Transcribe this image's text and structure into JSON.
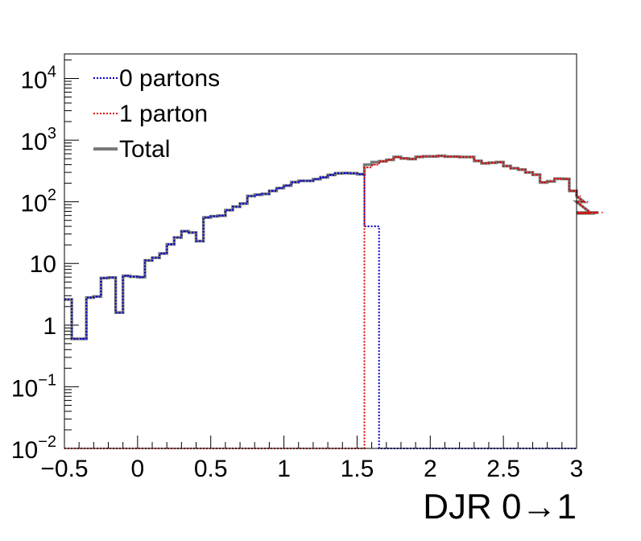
{
  "chart_data": {
    "type": "line",
    "style": "step-histogram",
    "xlabel": "DJR 0→1",
    "ylabel": "",
    "title": "",
    "xlim": [
      -0.5,
      3.0
    ],
    "ylim": [
      0.01,
      25000
    ],
    "yscale": "log",
    "bin_width": 0.05,
    "grid": false,
    "legend": {
      "placement": "top-left",
      "entries": [
        "0 partons",
        "1 parton",
        "Total"
      ]
    },
    "x_ticks": [
      {
        "value": -0.5,
        "label": "−0.5"
      },
      {
        "value": 0,
        "label": "0"
      },
      {
        "value": 0.5,
        "label": "0.5"
      },
      {
        "value": 1,
        "label": "1"
      },
      {
        "value": 1.5,
        "label": "1.5"
      },
      {
        "value": 2,
        "label": "2"
      },
      {
        "value": 2.5,
        "label": "2.5"
      },
      {
        "value": 3,
        "label": "3"
      }
    ],
    "y_ticks": [
      {
        "value": 0.01,
        "base": "10",
        "exp": "−2",
        "label": "10^-2"
      },
      {
        "value": 0.1,
        "base": "10",
        "exp": "−1",
        "label": "10^-1"
      },
      {
        "value": 1,
        "base": "1",
        "exp": "",
        "label": "1"
      },
      {
        "value": 10,
        "base": "10",
        "exp": "",
        "label": "10"
      },
      {
        "value": 100,
        "base": "10",
        "exp": "2",
        "label": "10^2"
      },
      {
        "value": 1000,
        "base": "10",
        "exp": "3",
        "label": "10^3"
      },
      {
        "value": 10000,
        "base": "10",
        "exp": "4",
        "label": "10^4"
      }
    ],
    "series": [
      {
        "name": "0 partons",
        "color": "#0000cc",
        "dash": "dotted",
        "x_start": -0.5,
        "values": [
          2.6,
          0.6,
          0.6,
          2.8,
          2.9,
          5.8,
          5.9,
          1.6,
          6.3,
          6.1,
          6.0,
          11.2,
          12.4,
          14.5,
          20.4,
          26.4,
          33.3,
          31.7,
          23.0,
          55.6,
          58.2,
          59.6,
          73.3,
          83.3,
          93.5,
          124.0,
          130.0,
          134.0,
          150.0,
          167.0,
          183.0,
          208.0,
          219.0,
          219.0,
          233.0,
          249.0,
          273.0,
          290.0,
          292.0,
          290.0,
          280.0,
          40.0,
          40.0,
          0.01,
          0.01,
          0.01,
          0.01,
          0.01,
          0.01,
          0.01,
          0.01,
          0.01,
          0.01,
          0.01,
          0.01,
          0.01,
          0.01,
          0.01,
          0.01,
          0.01,
          0.01,
          0.01,
          0.01,
          0.01,
          0.01,
          0.01,
          0.01,
          0.01,
          0.01,
          0.01
        ]
      },
      {
        "name": "1 parton",
        "color": "#dd0000",
        "dash": "dotted",
        "x_start": -0.5,
        "values": [
          0.01,
          0.01,
          0.01,
          0.01,
          0.01,
          0.01,
          0.01,
          0.01,
          0.01,
          0.01,
          0.01,
          0.01,
          0.01,
          0.01,
          0.01,
          0.01,
          0.01,
          0.01,
          0.01,
          0.01,
          0.01,
          0.01,
          0.01,
          0.01,
          0.01,
          0.01,
          0.01,
          0.01,
          0.01,
          0.01,
          0.01,
          0.01,
          0.01,
          0.01,
          0.01,
          0.01,
          0.01,
          0.01,
          0.01,
          0.01,
          0.01,
          360.0,
          400.0,
          453.0,
          480.0,
          532.0,
          505.0,
          495.0,
          535.0,
          545.0,
          545.0,
          555.0,
          540.0,
          540.0,
          532.0,
          532.0,
          460.0,
          420.0,
          430.0,
          440.0,
          380.0,
          350.0,
          333.0,
          300.0,
          275.0,
          206.0,
          215.0,
          237.0,
          235.0,
          150.0,
          124.0,
          100.0,
          65.0,
          67.0
        ]
      },
      {
        "name": "Total",
        "color": "#7a7a7a",
        "dash": "solid",
        "x_start": -0.5,
        "values": [
          2.6,
          0.6,
          0.6,
          2.8,
          2.9,
          5.8,
          5.9,
          1.6,
          6.3,
          6.1,
          6.0,
          11.2,
          12.4,
          14.5,
          20.4,
          26.4,
          33.3,
          31.7,
          23.0,
          55.6,
          58.2,
          59.6,
          73.3,
          83.3,
          93.5,
          124.0,
          130.0,
          134.0,
          150.0,
          167.0,
          183.0,
          208.0,
          219.0,
          219.0,
          233.0,
          249.0,
          273.0,
          290.0,
          292.0,
          290.0,
          280.0,
          400.0,
          440.0,
          453.0,
          480.0,
          532.0,
          505.0,
          495.0,
          535.0,
          545.0,
          545.0,
          555.0,
          540.0,
          540.0,
          532.0,
          532.0,
          460.0,
          420.0,
          430.0,
          440.0,
          380.0,
          350.0,
          333.0,
          300.0,
          275.0,
          206.0,
          215.0,
          237.0,
          235.0,
          150.0,
          124.0,
          100.0,
          65.0,
          67.0
        ]
      }
    ]
  }
}
